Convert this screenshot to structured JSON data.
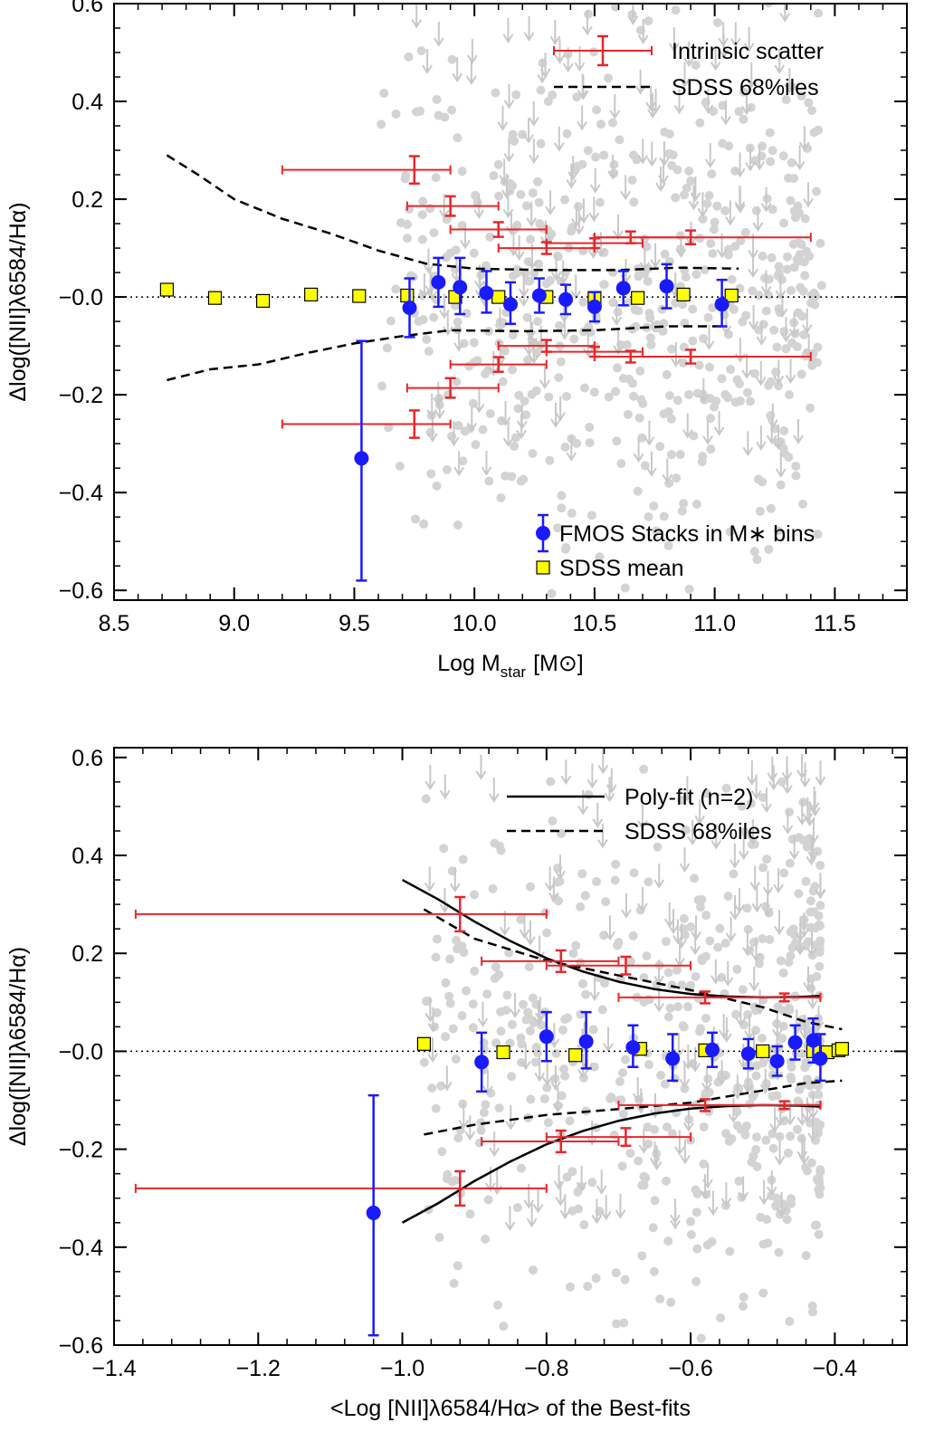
{
  "figure": {
    "type": "two-panel scatter plot with error bars"
  },
  "chart_data": [
    {
      "type": "scatter",
      "panel": "top",
      "xlabel": "Log M",
      "xlabel_sub": "star",
      "xlabel_unit": "[M⊙]",
      "ylabel": "Δlog([NII]λ6584/Hα)",
      "xlim": [
        8.5,
        11.8
      ],
      "ylim": [
        -0.62,
        0.6
      ],
      "xticks": [
        8.5,
        9.0,
        9.5,
        10.0,
        10.5,
        11.0,
        11.5
      ],
      "xtick_labels": [
        "8.5",
        "9.0",
        "9.5",
        "10.0",
        "10.5",
        "11.0",
        "11.5"
      ],
      "yticks": [
        -0.6,
        -0.4,
        -0.2,
        0.0,
        0.2,
        0.4,
        0.6
      ],
      "ytick_labels": [
        "−0.6",
        "−0.4",
        "−0.2",
        "−0.0",
        "0.2",
        "0.4",
        "0.6"
      ],
      "zero_line": 0.0,
      "legend": {
        "top_right": [
          {
            "label": "Intrinsic scatter",
            "style": "red-errorbar"
          },
          {
            "label": "SDSS 68%iles",
            "style": "black-dashed"
          }
        ],
        "bottom_right": [
          {
            "label": "FMOS Stacks in M∗ bins",
            "style": "blue-circle"
          },
          {
            "label": "SDSS mean",
            "style": "yellow-square"
          }
        ]
      },
      "fmos_stacks": [
        {
          "x": 9.53,
          "y": -0.33,
          "err_lo": 0.25,
          "err_hi": 0.24
        },
        {
          "x": 9.73,
          "y": -0.022,
          "err_lo": 0.06,
          "err_hi": 0.06
        },
        {
          "x": 9.85,
          "y": 0.03,
          "err_lo": 0.05,
          "err_hi": 0.05
        },
        {
          "x": 9.94,
          "y": 0.02,
          "err_lo": 0.055,
          "err_hi": 0.06
        },
        {
          "x": 10.05,
          "y": 0.008,
          "err_lo": 0.04,
          "err_hi": 0.045
        },
        {
          "x": 10.15,
          "y": -0.015,
          "err_lo": 0.04,
          "err_hi": 0.045
        },
        {
          "x": 10.27,
          "y": 0.003,
          "err_lo": 0.035,
          "err_hi": 0.035
        },
        {
          "x": 10.38,
          "y": -0.005,
          "err_lo": 0.03,
          "err_hi": 0.03
        },
        {
          "x": 10.5,
          "y": -0.02,
          "err_lo": 0.03,
          "err_hi": 0.03
        },
        {
          "x": 10.62,
          "y": 0.018,
          "err_lo": 0.035,
          "err_hi": 0.035
        },
        {
          "x": 10.8,
          "y": 0.022,
          "err_lo": 0.045,
          "err_hi": 0.045
        },
        {
          "x": 11.03,
          "y": -0.015,
          "err_lo": 0.045,
          "err_hi": 0.05
        }
      ],
      "sdss_mean": [
        {
          "x": 8.72,
          "y": 0.015
        },
        {
          "x": 8.92,
          "y": -0.002
        },
        {
          "x": 9.12,
          "y": -0.008
        },
        {
          "x": 9.32,
          "y": 0.005
        },
        {
          "x": 9.52,
          "y": 0.002
        },
        {
          "x": 9.72,
          "y": 0.003
        },
        {
          "x": 9.92,
          "y": 0.0
        },
        {
          "x": 10.1,
          "y": 0.0
        },
        {
          "x": 10.3,
          "y": 0.0
        },
        {
          "x": 10.5,
          "y": -0.002
        },
        {
          "x": 10.68,
          "y": -0.002
        },
        {
          "x": 10.87,
          "y": 0.005
        },
        {
          "x": 11.07,
          "y": 0.003
        }
      ],
      "intrinsic_scatter": [
        {
          "y_upper": 0.26,
          "y_lower": -0.26,
          "x_lo": 9.2,
          "x_hi": 9.9,
          "x_center": 9.75,
          "y_err": 0.028
        },
        {
          "y_upper": 0.186,
          "y_lower": -0.186,
          "x_lo": 9.72,
          "x_hi": 10.1,
          "x_center": 9.9,
          "y_err": 0.02
        },
        {
          "y_upper": 0.138,
          "y_lower": -0.138,
          "x_lo": 9.9,
          "x_hi": 10.3,
          "x_center": 10.1,
          "y_err": 0.015
        },
        {
          "y_upper": 0.1,
          "y_lower": -0.1,
          "x_lo": 10.1,
          "x_hi": 10.5,
          "x_center": 10.3,
          "y_err": 0.012
        },
        {
          "y_upper": 0.11,
          "y_lower": -0.112,
          "x_lo": 10.3,
          "x_hi": 10.7,
          "x_center": 10.5,
          "y_err": 0.01
        },
        {
          "y_upper": 0.122,
          "y_lower": -0.122,
          "x_lo": 10.5,
          "x_hi": 11.4,
          "x_center": 10.9,
          "y_err": 0.014
        },
        {
          "y_upper": 0.122,
          "y_lower": -0.122,
          "x_lo": 10.5,
          "x_hi": 10.9,
          "x_center": 10.65,
          "y_err": 0.012
        }
      ],
      "sdss_68_upper": [
        [
          8.72,
          0.29
        ],
        [
          8.85,
          0.25
        ],
        [
          9.0,
          0.2
        ],
        [
          9.2,
          0.16
        ],
        [
          9.4,
          0.13
        ],
        [
          9.6,
          0.095
        ],
        [
          9.8,
          0.068
        ],
        [
          10.0,
          0.058
        ],
        [
          10.3,
          0.055
        ],
        [
          10.6,
          0.055
        ],
        [
          10.85,
          0.06
        ],
        [
          11.1,
          0.058
        ]
      ],
      "sdss_68_lower": [
        [
          8.72,
          -0.17
        ],
        [
          8.9,
          -0.148
        ],
        [
          9.1,
          -0.138
        ],
        [
          9.3,
          -0.115
        ],
        [
          9.5,
          -0.095
        ],
        [
          9.7,
          -0.08
        ],
        [
          9.9,
          -0.068
        ],
        [
          10.2,
          -0.07
        ],
        [
          10.5,
          -0.068
        ],
        [
          10.8,
          -0.06
        ],
        [
          11.05,
          -0.06
        ]
      ]
    },
    {
      "type": "scatter",
      "panel": "bottom",
      "xlabel": "<Log [NII]λ6584/Hα> of the Best-fits",
      "ylabel": "Δlog([NII]λ6584/Hα)",
      "xlim": [
        -1.4,
        -0.3
      ],
      "ylim": [
        -0.6,
        0.62
      ],
      "xticks": [
        -1.4,
        -1.2,
        -1.0,
        -0.8,
        -0.6,
        -0.4
      ],
      "xtick_labels": [
        "−1.4",
        "−1.2",
        "−1.0",
        "−0.8",
        "−0.6",
        "−0.4"
      ],
      "yticks": [
        -0.6,
        -0.4,
        -0.2,
        0.0,
        0.2,
        0.4,
        0.6
      ],
      "ytick_labels": [
        "−0.6",
        "−0.4",
        "−0.2",
        "−0.0",
        "0.2",
        "0.4",
        "0.6"
      ],
      "zero_line": 0.0,
      "legend": {
        "top_right": [
          {
            "label": "Poly-fit (n=2)",
            "style": "black-solid"
          },
          {
            "label": "SDSS 68%iles",
            "style": "black-dashed"
          }
        ]
      },
      "fmos_stacks": [
        {
          "x": -1.04,
          "y": -0.33,
          "err_lo": 0.25,
          "err_hi": 0.24
        },
        {
          "x": -0.89,
          "y": -0.022,
          "err_lo": 0.06,
          "err_hi": 0.06
        },
        {
          "x": -0.8,
          "y": 0.03,
          "err_lo": 0.05,
          "err_hi": 0.05
        },
        {
          "x": -0.745,
          "y": 0.02,
          "err_lo": 0.055,
          "err_hi": 0.06
        },
        {
          "x": -0.68,
          "y": 0.008,
          "err_lo": 0.04,
          "err_hi": 0.045
        },
        {
          "x": -0.625,
          "y": -0.015,
          "err_lo": 0.045,
          "err_hi": 0.05
        },
        {
          "x": -0.57,
          "y": 0.003,
          "err_lo": 0.035,
          "err_hi": 0.035
        },
        {
          "x": -0.52,
          "y": -0.005,
          "err_lo": 0.03,
          "err_hi": 0.03
        },
        {
          "x": -0.48,
          "y": -0.02,
          "err_lo": 0.03,
          "err_hi": 0.03
        },
        {
          "x": -0.455,
          "y": 0.018,
          "err_lo": 0.035,
          "err_hi": 0.035
        },
        {
          "x": -0.43,
          "y": 0.022,
          "err_lo": 0.045,
          "err_hi": 0.045
        },
        {
          "x": -0.42,
          "y": -0.015,
          "err_lo": 0.045,
          "err_hi": 0.05
        }
      ],
      "sdss_mean": [
        {
          "x": -0.97,
          "y": 0.015
        },
        {
          "x": -0.86,
          "y": -0.002
        },
        {
          "x": -0.76,
          "y": -0.008
        },
        {
          "x": -0.67,
          "y": 0.005
        },
        {
          "x": -0.58,
          "y": 0.002
        },
        {
          "x": -0.5,
          "y": 0.0
        },
        {
          "x": -0.43,
          "y": 0.0
        },
        {
          "x": -0.41,
          "y": -0.002
        },
        {
          "x": -0.395,
          "y": 0.002
        },
        {
          "x": -0.39,
          "y": 0.005
        }
      ],
      "intrinsic_scatter": [
        {
          "y_upper": 0.28,
          "y_lower": -0.28,
          "x_lo": -1.37,
          "x_hi": -0.8,
          "x_center": -0.92,
          "y_err": 0.035
        },
        {
          "y_upper": 0.184,
          "y_lower": -0.184,
          "x_lo": -0.89,
          "x_hi": -0.7,
          "x_center": -0.78,
          "y_err": 0.022
        },
        {
          "y_upper": 0.175,
          "y_lower": -0.175,
          "x_lo": -0.8,
          "x_hi": -0.6,
          "x_center": -0.69,
          "y_err": 0.018
        },
        {
          "y_upper": 0.11,
          "y_lower": -0.11,
          "x_lo": -0.7,
          "x_hi": -0.42,
          "x_center": -0.58,
          "y_err": 0.012
        },
        {
          "y_upper": 0.11,
          "y_lower": -0.11,
          "x_lo": -0.58,
          "x_hi": -0.42,
          "x_center": -0.47,
          "y_err": 0.008
        }
      ],
      "polyfit_upper": [
        [
          -1.0,
          0.35
        ],
        [
          -0.95,
          0.31
        ],
        [
          -0.9,
          0.265
        ],
        [
          -0.85,
          0.225
        ],
        [
          -0.8,
          0.19
        ],
        [
          -0.75,
          0.163
        ],
        [
          -0.7,
          0.142
        ],
        [
          -0.65,
          0.127
        ],
        [
          -0.6,
          0.117
        ],
        [
          -0.55,
          0.112
        ],
        [
          -0.5,
          0.11
        ],
        [
          -0.45,
          0.111
        ],
        [
          -0.42,
          0.113
        ]
      ],
      "polyfit_lower": [
        [
          -1.0,
          -0.35
        ],
        [
          -0.95,
          -0.31
        ],
        [
          -0.9,
          -0.265
        ],
        [
          -0.85,
          -0.225
        ],
        [
          -0.8,
          -0.19
        ],
        [
          -0.75,
          -0.163
        ],
        [
          -0.7,
          -0.142
        ],
        [
          -0.65,
          -0.127
        ],
        [
          -0.6,
          -0.117
        ],
        [
          -0.55,
          -0.112
        ],
        [
          -0.5,
          -0.11
        ],
        [
          -0.45,
          -0.111
        ],
        [
          -0.42,
          -0.113
        ]
      ],
      "sdss_68_upper": [
        [
          -0.97,
          0.29
        ],
        [
          -0.9,
          0.23
        ],
        [
          -0.8,
          0.185
        ],
        [
          -0.7,
          0.155
        ],
        [
          -0.6,
          0.125
        ],
        [
          -0.5,
          0.09
        ],
        [
          -0.44,
          0.06
        ],
        [
          -0.39,
          0.045
        ]
      ],
      "sdss_68_lower": [
        [
          -0.97,
          -0.17
        ],
        [
          -0.9,
          -0.15
        ],
        [
          -0.8,
          -0.13
        ],
        [
          -0.7,
          -0.118
        ],
        [
          -0.6,
          -0.105
        ],
        [
          -0.5,
          -0.08
        ],
        [
          -0.44,
          -0.065
        ],
        [
          -0.39,
          -0.06
        ]
      ]
    }
  ]
}
